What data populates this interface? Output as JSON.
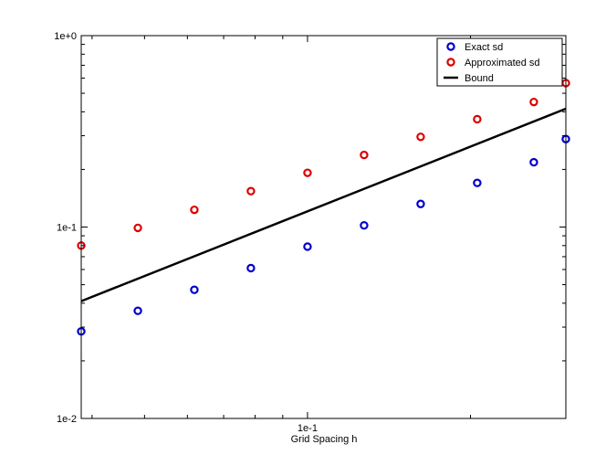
{
  "chart_data": {
    "type": "scatter",
    "title": "",
    "xlabel": "Grid Spacing h",
    "ylabel": "",
    "x_scale": "log",
    "y_scale": "log",
    "xlim": [
      0.0382,
      0.3
    ],
    "ylim": [
      0.01,
      1.0
    ],
    "x_ticks": [
      {
        "value": 0.1,
        "label": "1e-1"
      }
    ],
    "y_ticks": [
      {
        "value": 0.01,
        "label": "1e-2"
      },
      {
        "value": 0.1,
        "label": "1e-1"
      },
      {
        "value": 1.0,
        "label": "1e+0"
      }
    ],
    "grid": false,
    "legend_position": "top-right",
    "series": [
      {
        "name": "Exact sd",
        "kind": "markers",
        "marker": "circle",
        "color": "#0000cc",
        "x": [
          0.0382,
          0.0486,
          0.0618,
          0.0786,
          0.1,
          0.1272,
          0.1618,
          0.2058,
          0.2618,
          0.3
        ],
        "y": [
          0.0285,
          0.0365,
          0.047,
          0.061,
          0.079,
          0.102,
          0.132,
          0.17,
          0.218,
          0.288
        ]
      },
      {
        "name": "Approximated sd",
        "kind": "markers",
        "marker": "circle",
        "color": "#dd0000",
        "x": [
          0.0382,
          0.0486,
          0.0618,
          0.0786,
          0.1,
          0.1272,
          0.1618,
          0.2058,
          0.2618,
          0.3
        ],
        "y": [
          0.08,
          0.099,
          0.123,
          0.154,
          0.192,
          0.238,
          0.296,
          0.366,
          0.45,
          0.565
        ]
      },
      {
        "name": "Bound",
        "kind": "line",
        "color": "#000000",
        "x": [
          0.0382,
          0.3
        ],
        "y": [
          0.041,
          0.415
        ]
      }
    ]
  }
}
